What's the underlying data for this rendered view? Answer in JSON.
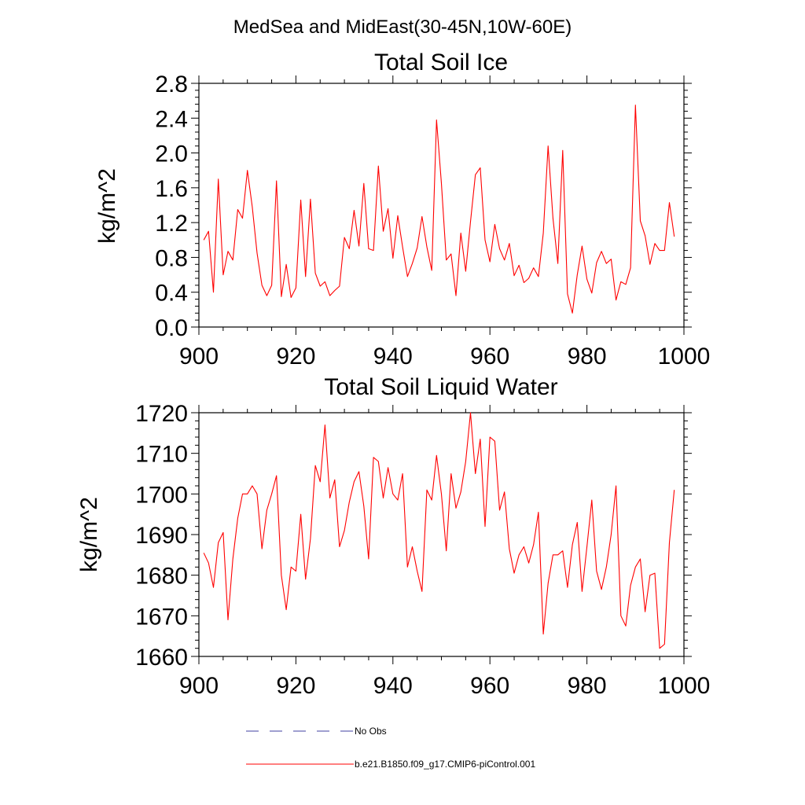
{
  "figure": {
    "suptitle": "MedSea and MidEast(30-45N,10W-60E)",
    "colors": {
      "series": "#ff0000",
      "noobs": "#4040a0",
      "axis": "#000000"
    },
    "legend": {
      "position": "bottom-center",
      "entries": [
        {
          "label": "No Obs",
          "style": "dashed"
        },
        {
          "label": "b.e21.B1850.f09_g17.CMIP6-piControl.001",
          "style": "solid"
        }
      ]
    }
  },
  "chart_data": [
    {
      "type": "line",
      "title": "Total Soil Ice",
      "xlabel": "",
      "ylabel": "kg/m^2",
      "xlim": [
        900,
        1000
      ],
      "ylim": [
        0.0,
        2.8
      ],
      "xticks": [
        "900",
        "920",
        "940",
        "960",
        "980",
        "1000"
      ],
      "yticks": [
        "0.0",
        "0.4",
        "0.8",
        "1.2",
        "1.6",
        "2.0",
        "2.4",
        "2.8"
      ],
      "series": [
        {
          "name": "b.e21.B1850.f09_g17.CMIP6-piControl.001",
          "x_start": 901,
          "values": [
            1.0,
            1.1,
            0.4,
            1.7,
            0.6,
            0.87,
            0.77,
            1.35,
            1.25,
            1.8,
            1.38,
            0.85,
            0.48,
            0.36,
            0.48,
            1.68,
            0.35,
            0.72,
            0.34,
            0.45,
            1.46,
            0.58,
            1.47,
            0.62,
            0.47,
            0.52,
            0.36,
            0.42,
            0.47,
            1.03,
            0.9,
            1.34,
            0.93,
            1.65,
            0.9,
            0.88,
            1.85,
            1.1,
            1.36,
            0.79,
            1.28,
            0.92,
            0.58,
            0.73,
            0.91,
            1.27,
            0.92,
            0.65,
            2.38,
            1.65,
            0.77,
            0.84,
            0.36,
            1.08,
            0.64,
            1.21,
            1.75,
            1.83,
            1.0,
            0.75,
            1.18,
            0.9,
            0.77,
            0.96,
            0.59,
            0.71,
            0.51,
            0.56,
            0.68,
            0.58,
            1.08,
            2.08,
            1.25,
            0.73,
            2.03,
            0.38,
            0.16,
            0.6,
            0.93,
            0.55,
            0.39,
            0.74,
            0.87,
            0.73,
            0.78,
            0.31,
            0.52,
            0.49,
            0.68,
            2.55,
            1.22,
            1.05,
            0.72,
            0.96,
            0.88,
            0.88,
            1.43,
            1.04
          ]
        }
      ]
    },
    {
      "type": "line",
      "title": "Total Soil Liquid Water",
      "xlabel": "",
      "ylabel": "kg/m^2",
      "xlim": [
        900,
        1000
      ],
      "ylim": [
        1660,
        1720
      ],
      "xticks": [
        "900",
        "920",
        "940",
        "960",
        "980",
        "1000"
      ],
      "yticks": [
        "1660",
        "1670",
        "1680",
        "1690",
        "1700",
        "1710",
        "1720"
      ],
      "series": [
        {
          "name": "b.e21.B1850.f09_g17.CMIP6-piControl.001",
          "x_start": 901,
          "values": [
            1685.5,
            1683.0,
            1677.0,
            1688.0,
            1690.5,
            1669.0,
            1684.0,
            1694.0,
            1700.0,
            1700.0,
            1702.0,
            1700.0,
            1686.5,
            1696.0,
            1700.0,
            1704.5,
            1680.0,
            1671.5,
            1682.0,
            1681.0,
            1695.0,
            1679.0,
            1689.0,
            1707.0,
            1703.0,
            1717.0,
            1699.0,
            1703.5,
            1687.0,
            1691.0,
            1698.0,
            1703.0,
            1705.5,
            1697.0,
            1684.0,
            1709.0,
            1708.0,
            1699.0,
            1706.5,
            1700.0,
            1698.5,
            1705.0,
            1682.0,
            1687.0,
            1681.0,
            1676.0,
            1701.0,
            1698.5,
            1709.5,
            1700.0,
            1686.0,
            1705.0,
            1696.5,
            1700.5,
            1708.0,
            1720.0,
            1705.0,
            1713.5,
            1692.0,
            1714.0,
            1713.0,
            1696.0,
            1700.5,
            1686.5,
            1680.5,
            1685.0,
            1687.0,
            1683.0,
            1687.5,
            1695.5,
            1665.5,
            1678.0,
            1685.0,
            1685.0,
            1686.0,
            1677.0,
            1687.5,
            1693.0,
            1676.0,
            1687.0,
            1698.5,
            1681.0,
            1676.5,
            1682.0,
            1690.0,
            1702.0,
            1670.0,
            1667.5,
            1677.5,
            1682.0,
            1684.0,
            1671.0,
            1680.0,
            1680.5,
            1662.0,
            1663.0,
            1688.0,
            1701.0
          ]
        }
      ]
    }
  ]
}
